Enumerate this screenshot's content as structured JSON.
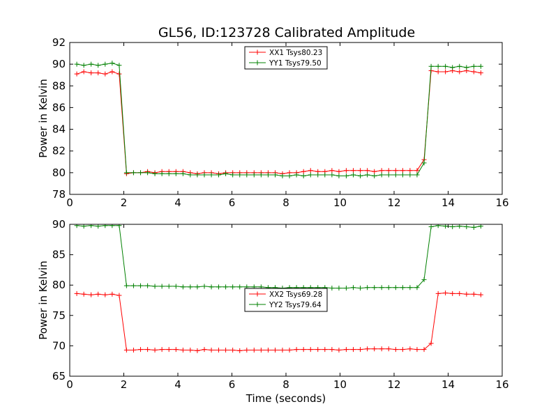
{
  "figure_title": "GL56, ID:123728 Calibrated Amplitude",
  "colors": {
    "red": "#ff0000",
    "green": "#008000"
  },
  "chart_data": [
    {
      "type": "line",
      "title": "GL56, ID:123728 Calibrated Amplitude",
      "xlabel": "",
      "ylabel": "Power in Kelvin",
      "xlim": [
        0,
        16
      ],
      "ylim": [
        78,
        92
      ],
      "xticks": [
        "0",
        "2",
        "4",
        "6",
        "8",
        "10",
        "12",
        "14",
        "16"
      ],
      "yticks": [
        "78",
        "80",
        "82",
        "84",
        "86",
        "88",
        "90",
        "92"
      ],
      "xtick_values": [
        0,
        2,
        4,
        6,
        8,
        10,
        12,
        14,
        16
      ],
      "ytick_values": [
        78,
        80,
        82,
        84,
        86,
        88,
        90,
        92
      ],
      "grid": false,
      "legend_position": "upper center",
      "x": [
        0.26,
        0.52,
        0.79,
        1.05,
        1.31,
        1.57,
        1.83,
        2.1,
        2.36,
        2.62,
        2.88,
        3.15,
        3.41,
        3.67,
        3.93,
        4.19,
        4.46,
        4.72,
        4.98,
        5.24,
        5.51,
        5.77,
        6.03,
        6.29,
        6.55,
        6.82,
        7.08,
        7.34,
        7.6,
        7.87,
        8.13,
        8.39,
        8.65,
        8.91,
        9.18,
        9.44,
        9.7,
        9.96,
        10.23,
        10.49,
        10.75,
        11.01,
        11.27,
        11.54,
        11.8,
        12.06,
        12.32,
        12.59,
        12.85,
        13.11,
        13.37,
        13.63,
        13.9,
        14.16,
        14.42,
        14.68,
        14.95,
        15.21
      ],
      "series": [
        {
          "name": "XX1 Tsys80.23",
          "color": "#ff0000",
          "values": [
            89.1,
            89.3,
            89.2,
            89.2,
            89.1,
            89.3,
            89.1,
            79.9,
            80.0,
            80.0,
            80.1,
            80.0,
            80.1,
            80.1,
            80.1,
            80.1,
            80.0,
            79.9,
            80.0,
            80.0,
            79.9,
            80.0,
            80.0,
            80.0,
            80.0,
            80.0,
            80.0,
            80.0,
            80.0,
            79.9,
            80.0,
            80.0,
            80.1,
            80.2,
            80.1,
            80.1,
            80.2,
            80.1,
            80.2,
            80.2,
            80.2,
            80.2,
            80.1,
            80.2,
            80.2,
            80.2,
            80.2,
            80.2,
            80.2,
            81.2,
            89.4,
            89.3,
            89.3,
            89.4,
            89.3,
            89.4,
            89.3,
            89.2
          ]
        },
        {
          "name": "YY1 Tsys79.50",
          "color": "#008000",
          "values": [
            90.0,
            89.9,
            90.0,
            89.9,
            90.0,
            90.1,
            89.9,
            80.0,
            80.0,
            80.0,
            80.0,
            79.9,
            79.9,
            79.9,
            79.9,
            79.9,
            79.8,
            79.8,
            79.8,
            79.8,
            79.8,
            79.9,
            79.8,
            79.8,
            79.8,
            79.8,
            79.8,
            79.8,
            79.8,
            79.7,
            79.7,
            79.8,
            79.7,
            79.8,
            79.8,
            79.8,
            79.8,
            79.7,
            79.7,
            79.8,
            79.7,
            79.8,
            79.7,
            79.8,
            79.8,
            79.8,
            79.8,
            79.8,
            79.8,
            80.9,
            89.8,
            89.8,
            89.8,
            89.7,
            89.8,
            89.7,
            89.8,
            89.8
          ]
        }
      ]
    },
    {
      "type": "line",
      "title": "",
      "xlabel": "Time (seconds)",
      "ylabel": "Power in Kelvin",
      "xlim": [
        0,
        16
      ],
      "ylim": [
        65,
        90
      ],
      "xticks": [
        "0",
        "2",
        "4",
        "6",
        "8",
        "10",
        "12",
        "14",
        "16"
      ],
      "yticks": [
        "65",
        "70",
        "75",
        "80",
        "85",
        "90"
      ],
      "xtick_values": [
        0,
        2,
        4,
        6,
        8,
        10,
        12,
        14,
        16
      ],
      "ytick_values": [
        65,
        70,
        75,
        80,
        85,
        90
      ],
      "grid": false,
      "legend_position": "center",
      "x": [
        0.26,
        0.52,
        0.79,
        1.05,
        1.31,
        1.57,
        1.83,
        2.1,
        2.36,
        2.62,
        2.88,
        3.15,
        3.41,
        3.67,
        3.93,
        4.19,
        4.46,
        4.72,
        4.98,
        5.24,
        5.51,
        5.77,
        6.03,
        6.29,
        6.55,
        6.82,
        7.08,
        7.34,
        7.6,
        7.87,
        8.13,
        8.39,
        8.65,
        8.91,
        9.18,
        9.44,
        9.7,
        9.96,
        10.23,
        10.49,
        10.75,
        11.01,
        11.27,
        11.54,
        11.8,
        12.06,
        12.32,
        12.59,
        12.85,
        13.11,
        13.37,
        13.63,
        13.9,
        14.16,
        14.42,
        14.68,
        14.95,
        15.21
      ],
      "series": [
        {
          "name": "XX2 Tsys69.28",
          "color": "#ff0000",
          "values": [
            78.6,
            78.5,
            78.4,
            78.5,
            78.4,
            78.5,
            78.3,
            69.3,
            69.3,
            69.4,
            69.4,
            69.3,
            69.4,
            69.4,
            69.4,
            69.3,
            69.3,
            69.2,
            69.4,
            69.3,
            69.3,
            69.3,
            69.3,
            69.2,
            69.3,
            69.3,
            69.3,
            69.3,
            69.3,
            69.3,
            69.3,
            69.4,
            69.4,
            69.4,
            69.4,
            69.4,
            69.4,
            69.3,
            69.4,
            69.4,
            69.4,
            69.5,
            69.5,
            69.5,
            69.5,
            69.4,
            69.4,
            69.5,
            69.4,
            69.4,
            70.4,
            78.6,
            78.7,
            78.6,
            78.6,
            78.5,
            78.5,
            78.4
          ]
        },
        {
          "name": "YY2 Tsys79.64",
          "color": "#008000",
          "values": [
            89.8,
            89.7,
            89.8,
            89.7,
            89.8,
            89.8,
            89.8,
            79.9,
            79.9,
            79.9,
            79.9,
            79.8,
            79.8,
            79.8,
            79.8,
            79.7,
            79.7,
            79.7,
            79.8,
            79.7,
            79.7,
            79.7,
            79.7,
            79.7,
            79.7,
            79.7,
            79.7,
            79.6,
            79.6,
            79.5,
            79.6,
            79.6,
            79.6,
            79.6,
            79.6,
            79.6,
            79.5,
            79.5,
            79.5,
            79.6,
            79.5,
            79.6,
            79.6,
            79.6,
            79.6,
            79.6,
            79.6,
            79.6,
            79.6,
            80.9,
            89.6,
            89.8,
            89.7,
            89.6,
            89.7,
            89.6,
            89.5,
            89.7
          ]
        }
      ]
    }
  ]
}
